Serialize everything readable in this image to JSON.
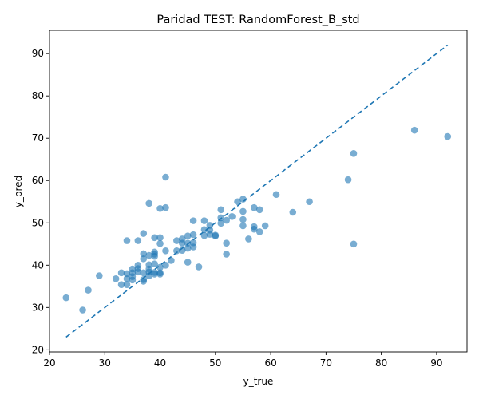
{
  "chart_data": {
    "type": "scatter",
    "title": "Paridad TEST: RandomForest_B_std",
    "xlabel": "y_true",
    "ylabel": "y_pred",
    "xlim": [
      20,
      95.5
    ],
    "ylim": [
      19.5,
      95.5
    ],
    "xticks": [
      20,
      30,
      40,
      50,
      60,
      70,
      80,
      90
    ],
    "yticks": [
      20,
      30,
      40,
      50,
      60,
      70,
      80,
      90
    ],
    "grid": false,
    "point_color": "#1f77b4",
    "identity_line": {
      "from": [
        23,
        23
      ],
      "to": [
        92,
        92
      ],
      "style": "dashed",
      "color": "#1f77b4"
    },
    "points": [
      [
        23,
        32.3
      ],
      [
        26,
        29.4
      ],
      [
        27,
        34.1
      ],
      [
        29,
        37.5
      ],
      [
        32,
        36.8
      ],
      [
        33,
        35.4
      ],
      [
        33,
        38.2
      ],
      [
        34,
        35.4
      ],
      [
        34,
        36.8
      ],
      [
        34,
        38.0
      ],
      [
        34,
        45.8
      ],
      [
        35,
        36.5
      ],
      [
        35,
        37.3
      ],
      [
        35,
        38.2
      ],
      [
        35,
        39.1
      ],
      [
        36,
        38.4
      ],
      [
        36,
        39.2
      ],
      [
        36,
        40.0
      ],
      [
        36,
        45.8
      ],
      [
        37,
        36.2
      ],
      [
        37,
        36.6
      ],
      [
        37,
        38.2
      ],
      [
        37,
        41.5
      ],
      [
        37,
        42.7
      ],
      [
        37,
        47.5
      ],
      [
        38,
        37.5
      ],
      [
        38,
        38.4
      ],
      [
        38,
        39.1
      ],
      [
        38,
        40.1
      ],
      [
        38,
        42.3
      ],
      [
        38,
        54.6
      ],
      [
        39,
        37.9
      ],
      [
        39,
        38.3
      ],
      [
        39,
        40.3
      ],
      [
        39,
        42.1
      ],
      [
        39,
        42.6
      ],
      [
        39,
        43.1
      ],
      [
        39,
        46.5
      ],
      [
        40,
        37.9
      ],
      [
        40,
        38.2
      ],
      [
        40,
        39.5
      ],
      [
        40,
        45.1
      ],
      [
        40,
        46.5
      ],
      [
        40,
        53.4
      ],
      [
        41,
        40.0
      ],
      [
        41,
        43.4
      ],
      [
        41,
        53.6
      ],
      [
        41,
        60.8
      ],
      [
        42,
        41.1
      ],
      [
        43,
        43.4
      ],
      [
        43,
        45.8
      ],
      [
        44,
        43.5
      ],
      [
        44,
        45.2
      ],
      [
        44,
        46.2
      ],
      [
        45,
        40.7
      ],
      [
        45,
        44.0
      ],
      [
        45,
        45.2
      ],
      [
        45,
        46.9
      ],
      [
        46,
        44.3
      ],
      [
        46,
        45.3
      ],
      [
        46,
        47.2
      ],
      [
        46,
        50.5
      ],
      [
        47,
        39.6
      ],
      [
        48,
        47.0
      ],
      [
        48,
        48.4
      ],
      [
        48,
        50.5
      ],
      [
        49,
        47.3
      ],
      [
        49,
        48.3
      ],
      [
        49,
        49.4
      ],
      [
        50,
        46.9
      ],
      [
        50,
        47.1
      ],
      [
        51,
        49.9
      ],
      [
        51,
        51.2
      ],
      [
        51,
        53.1
      ],
      [
        52,
        42.6
      ],
      [
        52,
        45.2
      ],
      [
        52,
        50.6
      ],
      [
        53,
        51.5
      ],
      [
        54,
        55.0
      ],
      [
        55,
        49.3
      ],
      [
        55,
        50.8
      ],
      [
        55,
        52.7
      ],
      [
        55,
        55.6
      ],
      [
        56,
        46.2
      ],
      [
        57,
        48.5
      ],
      [
        57,
        49.1
      ],
      [
        57,
        53.6
      ],
      [
        58,
        47.9
      ],
      [
        58,
        53.1
      ],
      [
        59,
        49.3
      ],
      [
        61,
        56.7
      ],
      [
        64,
        52.5
      ],
      [
        67,
        55.0
      ],
      [
        74,
        60.2
      ],
      [
        75,
        45.0
      ],
      [
        75,
        66.4
      ],
      [
        86,
        71.9
      ],
      [
        92,
        70.4
      ]
    ]
  }
}
